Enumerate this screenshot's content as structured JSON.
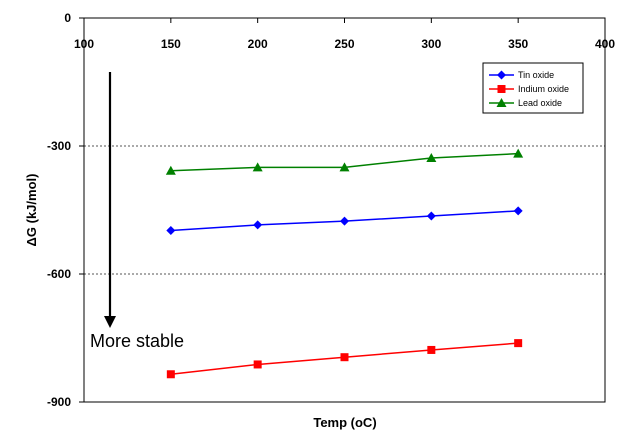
{
  "chart_data": {
    "type": "line",
    "title": "",
    "xlabel": "Temp (oC)",
    "ylabel": "ΔG (kJ/mol)",
    "xlim": [
      100,
      400
    ],
    "ylim": [
      -900,
      0
    ],
    "x_ticks": [
      "100",
      "150",
      "200",
      "250",
      "300",
      "350",
      "400"
    ],
    "y_ticks": [
      "0",
      "-300",
      "-600",
      "-900"
    ],
    "x": [
      150,
      200,
      250,
      300,
      350
    ],
    "series": [
      {
        "name": "Tin oxide",
        "color": "#0000ff",
        "marker": "diamond",
        "values": [
          -498,
          -485,
          -476,
          -464,
          -452
        ]
      },
      {
        "name": "Indium oxide",
        "color": "#ff0000",
        "marker": "square",
        "values": [
          -835,
          -812,
          -795,
          -778,
          -762
        ]
      },
      {
        "name": "Lead oxide",
        "color": "#008000",
        "marker": "triangle",
        "values": [
          -358,
          -350,
          -350,
          -328,
          -318
        ]
      }
    ],
    "gridlines": "dotted at -300 and -600",
    "legend_position": "top-right",
    "annotation": {
      "text": "More stable",
      "arrow": "downward"
    }
  }
}
